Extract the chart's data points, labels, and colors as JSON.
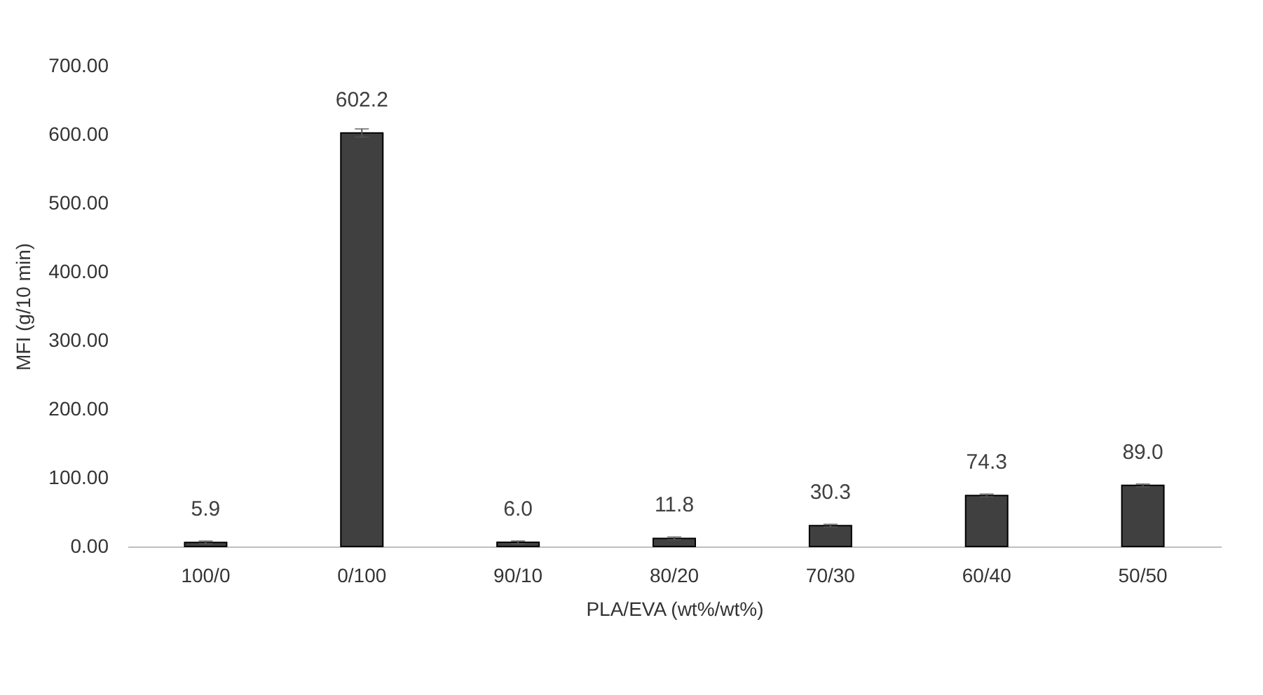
{
  "chart_data": {
    "type": "bar",
    "xlabel": "PLA/EVA (wt%/wt%)",
    "ylabel": "MFI (g/10 min)",
    "categories": [
      "100/0",
      "0/100",
      "90/10",
      "80/20",
      "70/30",
      "60/40",
      "50/50"
    ],
    "values": [
      5.9,
      602.2,
      6.0,
      11.8,
      30.3,
      74.3,
      89.0
    ],
    "value_labels": [
      "5.9",
      "602.2",
      "6.0",
      "11.8",
      "30.3",
      "74.3",
      "89.0"
    ],
    "errors": [
      2,
      6,
      2,
      2,
      2,
      2,
      2
    ],
    "color": "#404040",
    "ylim": [
      0,
      700
    ],
    "yticks": [
      {
        "value": 0,
        "label": "0.00"
      },
      {
        "value": 100,
        "label": "100.00"
      },
      {
        "value": 200,
        "label": "200.00"
      },
      {
        "value": 300,
        "label": "300.00"
      },
      {
        "value": 400,
        "label": "400.00"
      },
      {
        "value": 500,
        "label": "500.00"
      },
      {
        "value": 600,
        "label": "600.00"
      },
      {
        "value": 700,
        "label": "700.00"
      }
    ],
    "grid": false
  }
}
